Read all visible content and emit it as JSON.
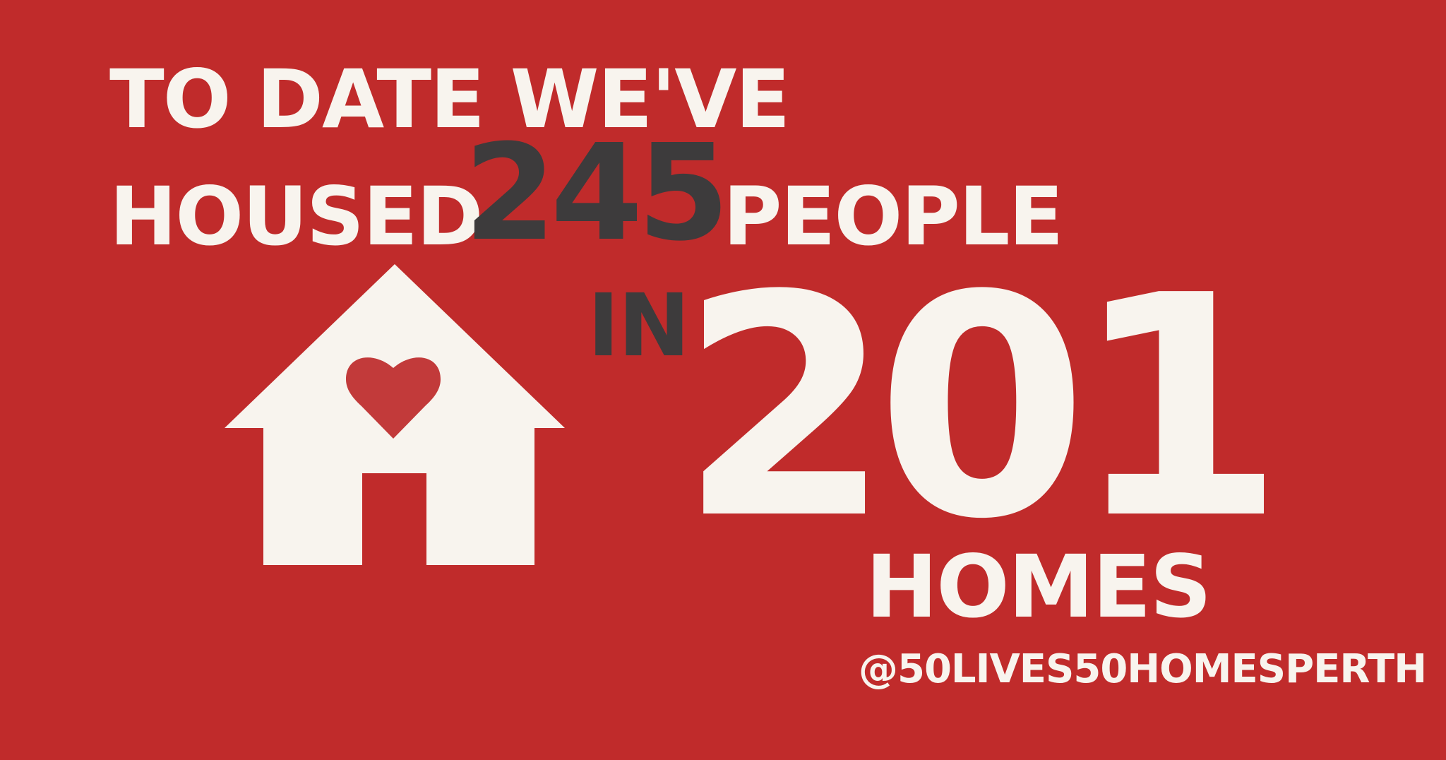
{
  "headline": {
    "line1": "TO DATE WE'VE",
    "housed_word": "HOUSED",
    "people_count": "245",
    "people_word": "PEOPLE",
    "in_word": "IN",
    "homes_count": "201",
    "homes_word": "HOMES"
  },
  "social_handle": "@50LIVES50HOMESPERTH",
  "icons": {
    "house": "house-icon",
    "heart": "heart-icon"
  },
  "colors": {
    "background": "#c02b2b",
    "cream": "#f8f4ee",
    "charcoal": "#3d3b3c",
    "heart": "#c23a3a"
  }
}
